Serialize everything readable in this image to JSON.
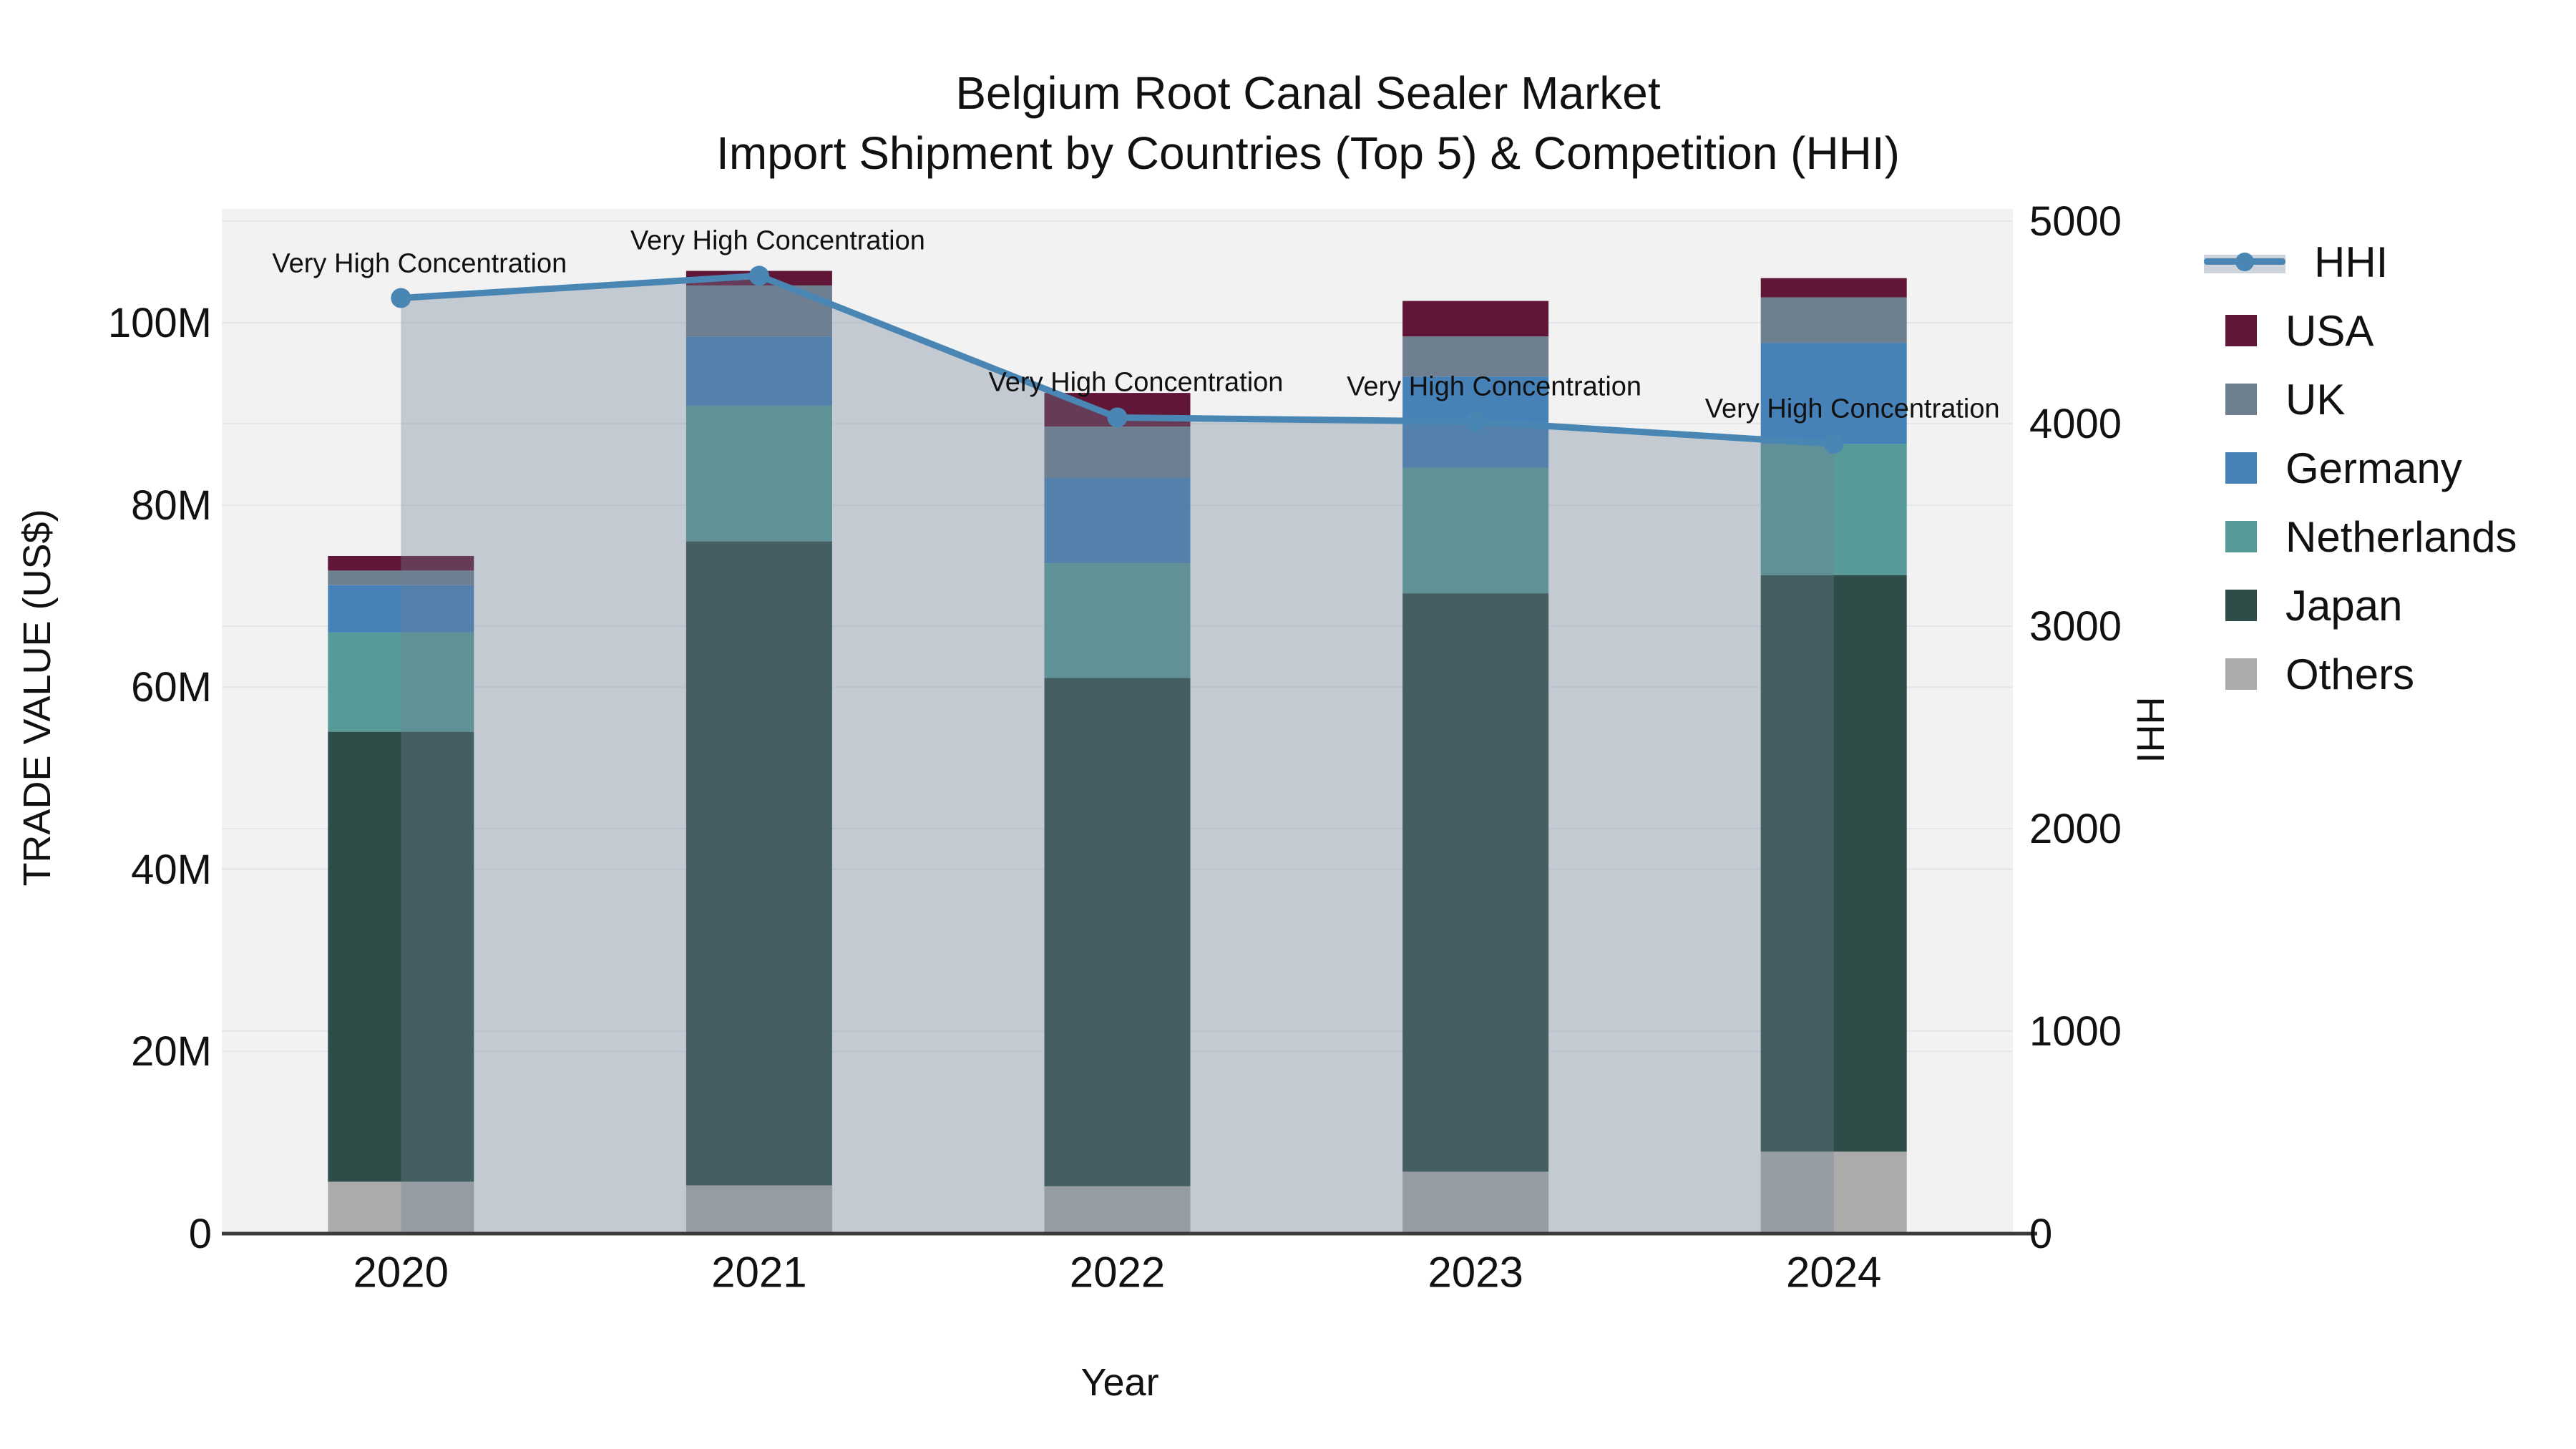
{
  "title": {
    "line1": "Belgium Root Canal Sealer Market",
    "line2": "Import Shipment by Countries (Top 5) & Competition (HHI)"
  },
  "axes": {
    "x": {
      "label": "Year",
      "ticks": [
        "2020",
        "2021",
        "2022",
        "2023",
        "2024"
      ]
    },
    "y_left": {
      "label": "TRADE VALUE (US$)",
      "ticks": [
        {
          "value": 0,
          "label": "0"
        },
        {
          "value": 20,
          "label": "20M"
        },
        {
          "value": 40,
          "label": "40M"
        },
        {
          "value": 60,
          "label": "60M"
        },
        {
          "value": 80,
          "label": "80M"
        },
        {
          "value": 100,
          "label": "100M"
        }
      ]
    },
    "y_right": {
      "label": "HHI",
      "ticks": [
        {
          "value": 0,
          "label": "0"
        },
        {
          "value": 1000,
          "label": "1000"
        },
        {
          "value": 2000,
          "label": "2000"
        },
        {
          "value": 3000,
          "label": "3000"
        },
        {
          "value": 4000,
          "label": "4000"
        },
        {
          "value": 5000,
          "label": "5000"
        }
      ]
    }
  },
  "legend": [
    {
      "label": "HHI",
      "type": "line",
      "color": "#4a86b4"
    },
    {
      "label": "USA",
      "type": "swatch",
      "color": "#601636"
    },
    {
      "label": "UK",
      "type": "swatch",
      "color": "#6e7f90"
    },
    {
      "label": "Germany",
      "type": "swatch",
      "color": "#4682b8"
    },
    {
      "label": "Netherlands",
      "type": "swatch",
      "color": "#589a97"
    },
    {
      "label": "Japan",
      "type": "swatch",
      "color": "#2e4c48"
    },
    {
      "label": "Others",
      "type": "swatch",
      "color": "#ababab"
    }
  ],
  "annotations": [
    {
      "year": "2020",
      "text": "Very High Concentration"
    },
    {
      "year": "2021",
      "text": "Very High Concentration"
    },
    {
      "year": "2022",
      "text": "Very High Concentration"
    },
    {
      "year": "2023",
      "text": "Very High Concentration"
    },
    {
      "year": "2024",
      "text": "Very High Concentration"
    }
  ],
  "chart_data": {
    "type": "combo: stacked bar (left axis) + line with area fill (right axis)",
    "categories": [
      "2020",
      "2021",
      "2022",
      "2023",
      "2024"
    ],
    "bar_unit": "million US$",
    "series_bottom_to_top": [
      {
        "name": "Others",
        "color": "#ababab",
        "values": [
          5.7,
          5.3,
          5.2,
          6.8,
          9.0
        ]
      },
      {
        "name": "Japan",
        "color": "#2e4c48",
        "values": [
          49.4,
          70.7,
          55.8,
          63.5,
          63.3
        ]
      },
      {
        "name": "Netherlands",
        "color": "#589a97",
        "values": [
          10.9,
          14.9,
          12.6,
          13.8,
          14.4
        ]
      },
      {
        "name": "Germany",
        "color": "#4682b8",
        "values": [
          5.2,
          7.6,
          9.4,
          10.0,
          11.1
        ]
      },
      {
        "name": "UK",
        "color": "#6e7f90",
        "values": [
          1.6,
          5.6,
          5.6,
          4.4,
          5.0
        ]
      },
      {
        "name": "USA",
        "color": "#601636",
        "values": [
          1.6,
          1.6,
          3.7,
          3.9,
          2.1
        ]
      }
    ],
    "bar_totals": [
      74.4,
      105.7,
      92.3,
      102.4,
      104.9
    ],
    "line": {
      "name": "HHI",
      "values": [
        4620,
        4730,
        4030,
        4010,
        3900
      ],
      "color": "#4a86b4",
      "area_fill": "rgba(112,128,150,0.35)"
    },
    "ylim_left": [
      0,
      112.5
    ],
    "ylim_right": [
      0,
      5060
    ],
    "grid": "on",
    "legend_position": "right",
    "colors": {
      "plot_background": "#f2f2f3",
      "figure_background": "#ffffff",
      "gridline": "#e3e6ea",
      "axis_line": "#3a3a3a",
      "text": "#111111"
    }
  }
}
